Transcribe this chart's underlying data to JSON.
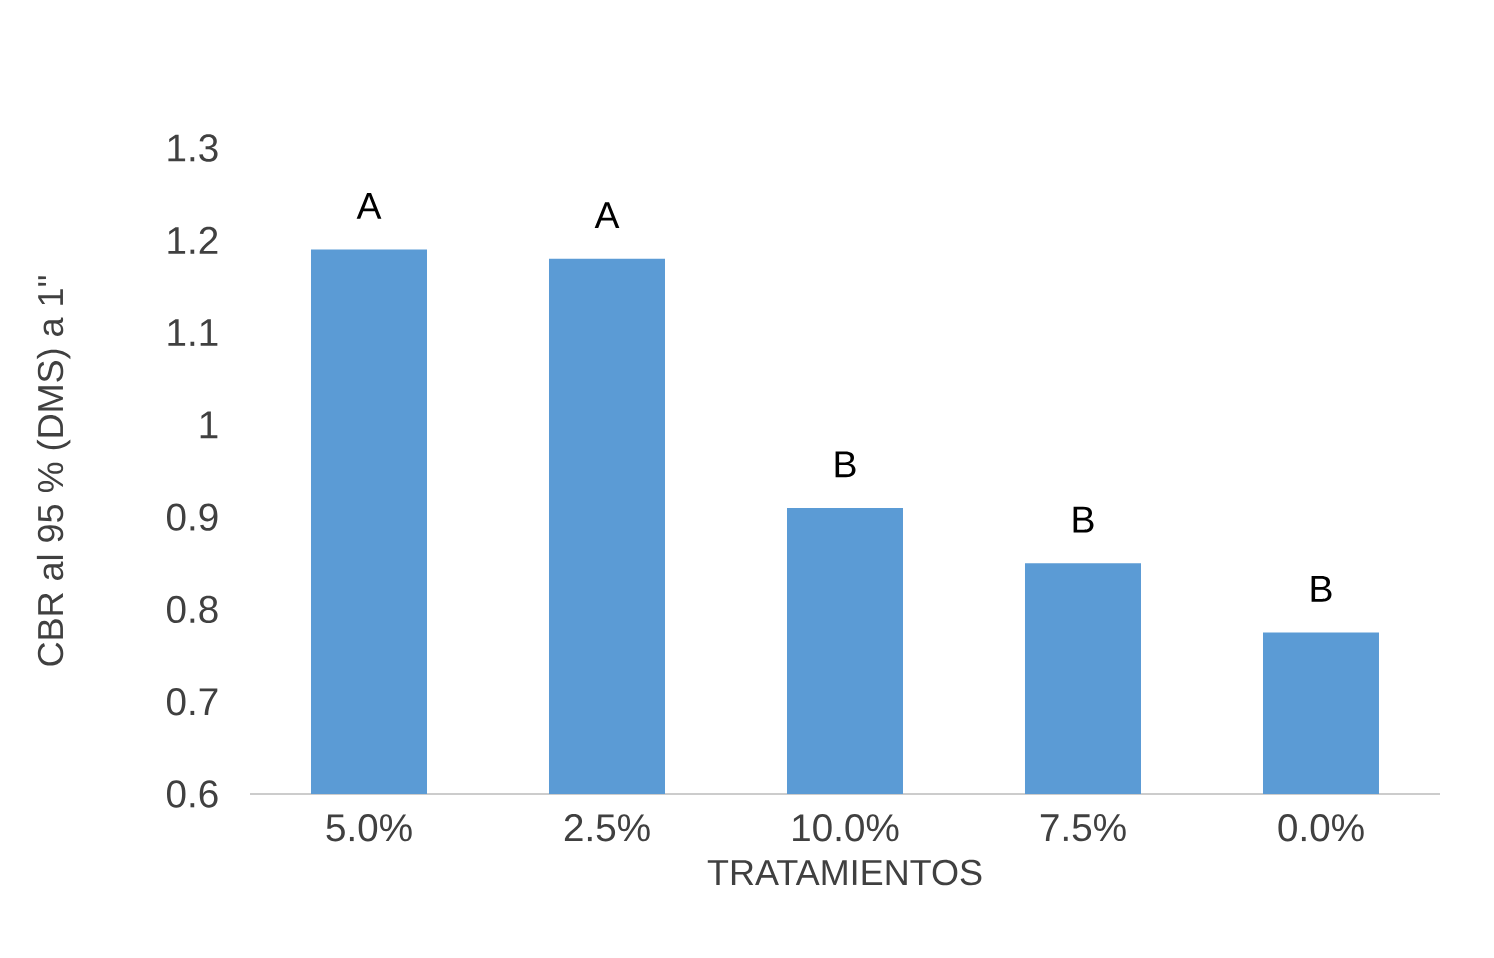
{
  "chart_data": {
    "type": "bar",
    "xlabel": "TRATAMIENTOS",
    "ylabel": "CBR al 95 % (DMS) a 1\"",
    "categories": [
      "5.0%",
      "2.5%",
      "10.0%",
      "7.5%",
      "0.0%"
    ],
    "values": [
      1.19,
      1.18,
      0.91,
      0.85,
      0.775
    ],
    "color": "#5b9bd5",
    "ylim": [
      0.6,
      1.3
    ],
    "yticks": [
      0.6,
      0.7,
      0.8,
      0.9,
      {
        "value": 1,
        "label": "1"
      },
      1.1,
      1.2,
      1.3
    ],
    "annotations": [
      {
        "text": "A",
        "x": "5.0%",
        "y": 1.19
      },
      {
        "text": "A",
        "x": "2.5%",
        "y": 1.18
      },
      {
        "text": "B",
        "x": "10.0%",
        "y": 0.91
      },
      {
        "text": "B",
        "x": "7.5%",
        "y": 0.85
      },
      {
        "text": "B",
        "x": "0.0%",
        "y": 0.775
      }
    ]
  }
}
